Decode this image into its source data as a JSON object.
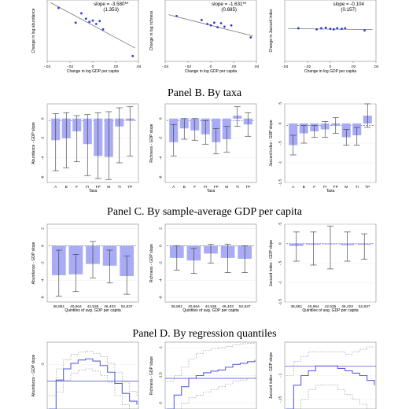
{
  "panel_titles": {
    "b": "Panel B. By taxa",
    "c": "Panel C. By sample-average GDP per capita",
    "d": "Panel D. By regression quantiles"
  },
  "chart_data": [
    {
      "type": "scatter",
      "panel": "A",
      "annotation_slope": "slope = -3.580**",
      "annotation_se": "(1.353)",
      "xlabel": "Change in log GDP per capita",
      "ylabel": "Change in log abundance",
      "xticks": [
        "-.04",
        "-.02",
        "0",
        ".02",
        ".04"
      ],
      "xlim": [
        -0.04,
        0.04
      ],
      "points": [
        [
          -0.03,
          0.08
        ],
        [
          -0.015,
          0.025
        ],
        [
          -0.01,
          0.06
        ],
        [
          -0.006,
          0.04
        ],
        [
          -0.003,
          0.028
        ],
        [
          0.0,
          0.033
        ],
        [
          0.003,
          0.02
        ],
        [
          0.006,
          0.031
        ],
        [
          0.009,
          0.0
        ],
        [
          0.035,
          -0.1
        ]
      ],
      "fit": [
        [
          -0.037,
          0.1
        ],
        [
          0.037,
          -0.07
        ]
      ]
    },
    {
      "type": "scatter",
      "panel": "A",
      "annotation_slope": "slope = -1.631**",
      "annotation_se": "(0.685)",
      "xlabel": "Change in log GDP per capita",
      "ylabel": "Change in log richness",
      "xticks": [
        "-.04",
        "-.02",
        "0",
        ".02",
        ".04"
      ],
      "xlim": [
        -0.04,
        0.04
      ],
      "points": [
        [
          -0.03,
          0.05
        ],
        [
          -0.008,
          0.035
        ],
        [
          -0.003,
          0.02
        ],
        [
          0.0,
          0.015
        ],
        [
          0.003,
          0.025
        ],
        [
          0.006,
          0.008
        ],
        [
          0.009,
          0.023
        ],
        [
          0.012,
          0.01
        ],
        [
          0.018,
          0.015
        ],
        [
          0.035,
          -0.03
        ]
      ],
      "fit": [
        [
          -0.037,
          0.055
        ],
        [
          0.037,
          -0.025
        ]
      ]
    },
    {
      "type": "scatter",
      "panel": "A",
      "annotation_slope": "slope = -0.104",
      "annotation_se": "(0.157)",
      "xlabel": "Change in log GDP per capita",
      "ylabel": "Change in Jaccard index",
      "xticks": [
        "-.04",
        "-.02",
        "0",
        ".02",
        ".04"
      ],
      "xlim": [
        -0.04,
        0.04
      ],
      "points": [
        [
          -0.028,
          0.004
        ],
        [
          -0.012,
          0.0
        ],
        [
          -0.008,
          0.004
        ],
        [
          -0.004,
          0.006
        ],
        [
          0.0,
          0.002
        ],
        [
          0.003,
          0.0
        ],
        [
          0.006,
          0.004
        ],
        [
          0.01,
          0.002
        ],
        [
          0.013,
          0.004
        ],
        [
          0.03,
          -0.004
        ]
      ],
      "fit": [
        [
          -0.037,
          0.003
        ],
        [
          0.037,
          -0.001
        ]
      ]
    },
    {
      "type": "bar",
      "panel": "B",
      "categories": [
        "A",
        "B",
        "F",
        "FI",
        "FP",
        "M",
        "TI",
        "TP"
      ],
      "xlabel": "Taxa",
      "ylabel": "Abundance - GDP slope",
      "yticks": [
        "0",
        "-2",
        "-4",
        "-6"
      ],
      "ylim": [
        -6.5,
        1.5
      ],
      "ref": -0.2,
      "values": [
        -2.2,
        -2.0,
        -1.3,
        -2.6,
        -3.8,
        -3.9,
        -0.8,
        -0.2
      ],
      "ci_low": [
        -5.3,
        -5.0,
        -4.4,
        -5.8,
        -6.1,
        -6.2,
        -4.5,
        -3.8
      ],
      "ci_high": [
        0.5,
        0.6,
        0.3,
        0.4,
        0.6,
        0.7,
        1.1,
        1.2
      ]
    },
    {
      "type": "bar",
      "panel": "B",
      "categories": [
        "A",
        "B",
        "F",
        "FI",
        "FP",
        "M",
        "TI",
        "TP"
      ],
      "xlabel": "Taxa",
      "ylabel": "Richness - GDP slope",
      "yticks": [
        "0",
        "-2",
        "-4",
        "-6"
      ],
      "ylim": [
        -6.5,
        1.5
      ],
      "ref": -0.2,
      "values": [
        -2.4,
        -1.0,
        -1.2,
        -1.6,
        -2.4,
        -2.1,
        0.3,
        -0.6
      ],
      "ci_low": [
        -3.8,
        -2.1,
        -2.2,
        -2.6,
        -3.6,
        -3.4,
        -0.8,
        -1.8
      ],
      "ci_high": [
        -0.6,
        0.0,
        0.0,
        -0.2,
        -1.0,
        -0.8,
        1.2,
        0.6
      ]
    },
    {
      "type": "bar",
      "panel": "B",
      "categories": [
        "A",
        "B",
        "F",
        "FI",
        "FP",
        "M",
        "TI",
        "TP"
      ],
      "xlabel": "Taxa",
      "ylabel": "Jaccard index - GDP slope",
      "yticks": [
        ".5",
        "0",
        "-.5",
        "-1",
        "-1.5"
      ],
      "ylim": [
        -1.5,
        0.5
      ],
      "ref": -0.05,
      "values": [
        -0.55,
        -0.25,
        -0.2,
        -0.15,
        -0.05,
        -0.35,
        -0.3,
        0.2
      ],
      "ci_low": [
        -0.8,
        -0.5,
        -0.35,
        -0.35,
        -0.25,
        -0.55,
        -0.55,
        -0.1
      ],
      "ci_high": [
        -0.3,
        -0.05,
        -0.05,
        0.05,
        0.15,
        -0.15,
        -0.1,
        0.5
      ]
    },
    {
      "type": "bar",
      "panel": "C",
      "categories": [
        "36,881",
        "40,664",
        "42,535",
        "46,403",
        "52,837"
      ],
      "xlabel": "Quintiles of avg. GDP per capita",
      "ylabel": "Abundance - GDP slope",
      "yticks": [
        "2",
        "0",
        "-2",
        "-4",
        "-6"
      ],
      "ylim": [
        -6.5,
        2.5
      ],
      "ref": 0,
      "values": [
        -3.4,
        -3.3,
        -2.1,
        -2.3,
        -3.5
      ],
      "ci_low": [
        -5.8,
        -5.3,
        -3.7,
        -4.3,
        -5.6
      ],
      "ci_high": [
        -0.5,
        -1.0,
        0.5,
        -0.5,
        -1.2
      ]
    },
    {
      "type": "bar",
      "panel": "C",
      "categories": [
        "36,881",
        "40,664",
        "42,535",
        "46,403",
        "52,837"
      ],
      "xlabel": "Quintiles of avg. GDP per capita",
      "ylabel": "Richness - GDP slope",
      "yticks": [
        "2",
        "0",
        "-2",
        "-4",
        "-6"
      ],
      "ylim": [
        -6.5,
        2.5
      ],
      "ref": 0,
      "values": [
        -1.4,
        -1.7,
        -0.9,
        -1.4,
        -1.5
      ],
      "ci_low": [
        -2.8,
        -3.2,
        -2.0,
        -3.1,
        -3.1
      ],
      "ci_high": [
        0.0,
        -0.3,
        0.2,
        0.2,
        0.0
      ]
    },
    {
      "type": "bar",
      "panel": "C",
      "categories": [
        "36,881",
        "40,664",
        "42,535",
        "46,403",
        "52,837"
      ],
      "xlabel": "Quintiles of avg. GDP per capita",
      "ylabel": "Jaccard index - GDP slope",
      "yticks": [
        ".5",
        "0",
        "-.5",
        "-1",
        "-1.5"
      ],
      "ylim": [
        -1.5,
        0.5
      ],
      "ref": 0,
      "values": [
        -0.06,
        -0.03,
        -0.02,
        -0.04,
        -0.03
      ],
      "ci_low": [
        -0.45,
        -0.55,
        -0.65,
        -0.45,
        -0.4
      ],
      "ci_high": [
        0.3,
        0.3,
        0.45,
        0.3,
        0.25
      ]
    },
    {
      "type": "line",
      "panel": "D",
      "ylabel": "Abundance - GDP slope",
      "yticks": [
        "-2"
      ],
      "ylim": [
        -6,
        0
      ],
      "ref": -3.5,
      "x": [
        0,
        1,
        2,
        3,
        4,
        5,
        6,
        7,
        8,
        9,
        10,
        11,
        12
      ],
      "estimate": [
        -6.0,
        -3.4,
        -2.4,
        -1.9,
        -1.6,
        -1.5,
        -1.7,
        -2.1,
        -2.7,
        -3.7,
        -4.6,
        -5.3,
        -5.6
      ],
      "ci_low": [
        -6.0,
        -4.5,
        -3.4,
        -2.8,
        -2.5,
        -2.4,
        -2.6,
        -3.0,
        -3.6,
        -4.8,
        -5.6,
        -6.0,
        -6.0
      ],
      "ci_high": [
        -4.8,
        -2.4,
        -1.6,
        -1.1,
        -0.9,
        -0.8,
        -1.0,
        -1.3,
        -1.9,
        -2.7,
        -3.6,
        -4.4,
        -4.8
      ]
    },
    {
      "type": "line",
      "panel": "D",
      "ylabel": "Richness - GDP slope",
      "yticks": [
        "-1",
        "-1.5",
        "-2"
      ],
      "ylim": [
        -2.1,
        -0.9
      ],
      "ref": -1.55,
      "x": [
        0,
        1,
        2,
        3,
        4,
        5,
        6,
        7,
        8,
        9,
        10,
        11,
        12
      ],
      "estimate": [
        -2.1,
        -1.85,
        -1.7,
        -1.55,
        -1.5,
        -1.45,
        -1.42,
        -1.4,
        -1.35,
        -1.3,
        -1.28,
        -1.25,
        -1.22
      ],
      "ci_low": [
        -2.1,
        -2.1,
        -2.0,
        -1.9,
        -1.85,
        -1.8,
        -1.75,
        -1.7,
        -1.65,
        -1.6,
        -1.58,
        -1.55,
        -1.5
      ],
      "ci_high": [
        -1.6,
        -1.5,
        -1.35,
        -1.2,
        -1.1,
        -1.05,
        -1.02,
        -1.0,
        -0.98,
        -0.95,
        -0.93,
        -0.92,
        -0.9
      ]
    },
    {
      "type": "line",
      "panel": "D",
      "ylabel": "Jaccard index - GDP slope",
      "yticks": [
        "-.1",
        "-.15"
      ],
      "ylim": [
        -0.17,
        -0.03
      ],
      "ref": -0.08,
      "x": [
        0,
        1,
        2,
        3,
        4,
        5,
        6,
        7,
        8,
        9,
        10,
        11,
        12
      ],
      "estimate": [
        -0.17,
        -0.12,
        -0.1,
        -0.09,
        -0.08,
        -0.08,
        -0.08,
        -0.085,
        -0.09,
        -0.095,
        -0.1,
        -0.11,
        -0.12
      ],
      "ci_low": [
        -0.17,
        -0.17,
        -0.15,
        -0.13,
        -0.12,
        -0.12,
        -0.12,
        -0.13,
        -0.14,
        -0.15,
        -0.16,
        -0.17,
        -0.17
      ],
      "ci_high": [
        -0.1,
        -0.07,
        -0.06,
        -0.05,
        -0.05,
        -0.05,
        -0.05,
        -0.05,
        -0.055,
        -0.05,
        -0.045,
        -0.04,
        -0.04
      ]
    }
  ]
}
